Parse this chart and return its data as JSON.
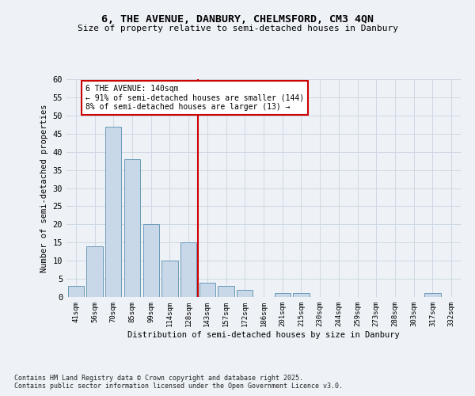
{
  "title_line1": "6, THE AVENUE, DANBURY, CHELMSFORD, CM3 4QN",
  "title_line2": "Size of property relative to semi-detached houses in Danbury",
  "xlabel": "Distribution of semi-detached houses by size in Danbury",
  "ylabel": "Number of semi-detached properties",
  "categories": [
    "41sqm",
    "56sqm",
    "70sqm",
    "85sqm",
    "99sqm",
    "114sqm",
    "128sqm",
    "143sqm",
    "157sqm",
    "172sqm",
    "186sqm",
    "201sqm",
    "215sqm",
    "230sqm",
    "244sqm",
    "259sqm",
    "273sqm",
    "288sqm",
    "303sqm",
    "317sqm",
    "332sqm"
  ],
  "values": [
    3,
    14,
    47,
    38,
    20,
    10,
    15,
    4,
    3,
    2,
    0,
    1,
    1,
    0,
    0,
    0,
    0,
    0,
    0,
    1,
    0
  ],
  "bar_color": "#c8d8e8",
  "bar_edge_color": "#6a9ab8",
  "vline_index": 7,
  "annotation_text_line1": "6 THE AVENUE: 140sqm",
  "annotation_text_line2": "← 91% of semi-detached houses are smaller (144)",
  "annotation_text_line3": "8% of semi-detached houses are larger (13) →",
  "annotation_box_color": "#ffffff",
  "annotation_box_edge_color": "#cc0000",
  "vline_color": "#cc0000",
  "grid_color": "#cdd8e3",
  "background_color": "#eef2f7",
  "footer_text": "Contains HM Land Registry data © Crown copyright and database right 2025.\nContains public sector information licensed under the Open Government Licence v3.0.",
  "ylim": [
    0,
    60
  ],
  "yticks": [
    0,
    5,
    10,
    15,
    20,
    25,
    30,
    35,
    40,
    45,
    50,
    55,
    60
  ]
}
